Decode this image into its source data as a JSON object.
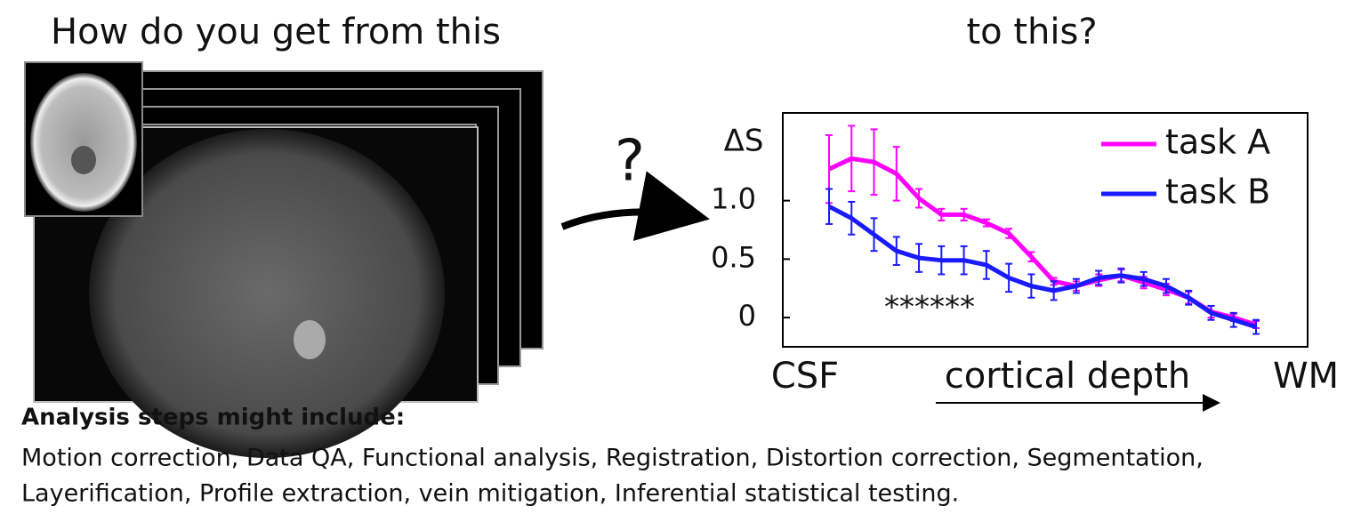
{
  "title_left": "How do you get from this",
  "title_right": "to this?",
  "question": "?",
  "chart_data": {
    "type": "line",
    "ylabel": "ΔS",
    "categories": [
      null,
      null,
      null,
      null,
      null,
      null,
      null,
      null,
      null,
      null,
      null,
      null,
      null,
      null,
      null,
      null,
      null,
      null,
      null,
      null
    ],
    "series": [
      {
        "name": "task A",
        "color": "#ff00ff",
        "values": [
          1.27,
          1.36,
          1.33,
          1.23,
          1.02,
          0.88,
          0.88,
          0.81,
          0.72,
          0.52,
          0.31,
          0.27,
          0.32,
          0.36,
          0.3,
          0.24,
          0.17,
          0.05,
          0.0,
          -0.06
        ],
        "errors": [
          0.29,
          0.28,
          0.28,
          0.23,
          0.08,
          0.05,
          0.05,
          0.03,
          0.04,
          0.04,
          0.03,
          0.04,
          0.05,
          0.05,
          0.05,
          0.05,
          0.05,
          0.05,
          0.03,
          0.03
        ]
      },
      {
        "name": "task B",
        "color": "#1a1aff",
        "values": [
          0.95,
          0.85,
          0.71,
          0.57,
          0.51,
          0.49,
          0.49,
          0.45,
          0.34,
          0.27,
          0.23,
          0.27,
          0.34,
          0.36,
          0.33,
          0.27,
          0.17,
          0.04,
          -0.02,
          -0.08
        ],
        "errors": [
          0.15,
          0.14,
          0.14,
          0.12,
          0.12,
          0.12,
          0.12,
          0.12,
          0.12,
          0.1,
          0.08,
          0.06,
          0.06,
          0.06,
          0.06,
          0.06,
          0.06,
          0.06,
          0.06,
          0.06
        ]
      }
    ],
    "ylim": [
      -0.25,
      1.75
    ],
    "yticks": [
      0,
      0.5,
      {
        "value": 1,
        "label": "1.0"
      }
    ],
    "legend": "upper right",
    "annotations": {
      "stars": "******",
      "left": "CSF",
      "right": "WM",
      "axis": "cortical depth"
    }
  },
  "caption": {
    "heading": "Analysis steps might include:",
    "lines": [
      "Motion correction, Data QA, Functional analysis, Registration, Distortion correction, Segmentation,",
      "Layerification, Profile extraction, vein mitigation, Inferential statistical testing."
    ]
  }
}
